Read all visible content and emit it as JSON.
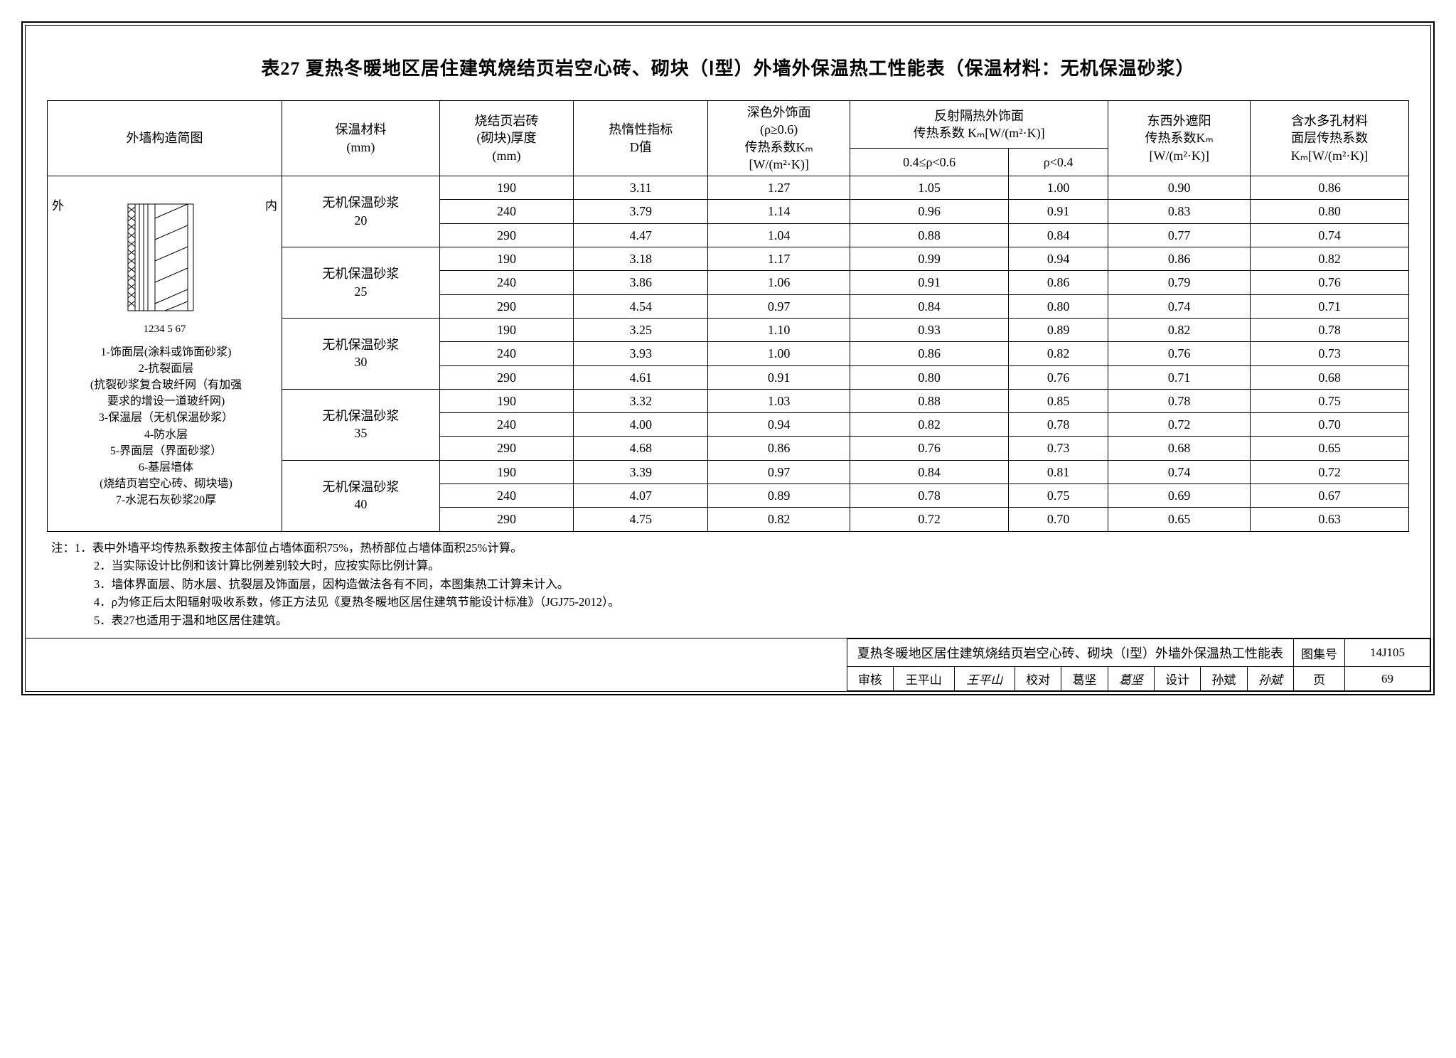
{
  "title": "表27 夏热冬暖地区居住建筑烧结页岩空心砖、砌块（Ⅰ型）外墙外保温热工性能表（保温材料：无机保温砂浆）",
  "headers": {
    "col1": "外墙构造简图",
    "col2_l1": "保温材料",
    "col2_l2": "(mm)",
    "col3_l1": "烧结页岩砖",
    "col3_l2": "(砌块)厚度",
    "col3_l3": "(mm)",
    "col4_l1": "热惰性指标",
    "col4_l2": "D值",
    "col5_l1": "深色外饰面",
    "col5_l2": "(ρ≥0.6)",
    "col5_l3": "传热系数Kₘ",
    "col5_l4": "[W/(m²·K)]",
    "col67_top_l1": "反射隔热外饰面",
    "col67_top_l2": "传热系数 Kₘ[W/(m²·K)]",
    "col6": "0.4≤ρ<0.6",
    "col7": "ρ<0.4",
    "col8_l1": "东西外遮阳",
    "col8_l2": "传热系数Kₘ",
    "col8_l3": "[W/(m²·K)]",
    "col9_l1": "含水多孔材料",
    "col9_l2": "面层传热系数",
    "col9_l3": "Kₘ[W/(m²·K)]"
  },
  "diagram": {
    "label_out": "外",
    "label_in": "内",
    "nums": "1234  5  67",
    "legend1": "1-饰面层(涂料或饰面砂浆)",
    "legend2": "2-抗裂面层",
    "legend2b": "(抗裂砂浆复合玻纤网（有加强",
    "legend2c": "要求的增设一道玻纤网)",
    "legend3": "3-保温层（无机保温砂浆）",
    "legend4": "4-防水层",
    "legend5": "5-界面层（界面砂浆）",
    "legend6": "6-基层墙体",
    "legend6b": "(烧结页岩空心砖、砌块墙)",
    "legend7": "7-水泥石灰砂浆20厚"
  },
  "groups": [
    {
      "label_l1": "无机保温砂浆",
      "label_l2": "20",
      "rows": [
        [
          "190",
          "3.11",
          "1.27",
          "1.05",
          "1.00",
          "0.90",
          "0.86"
        ],
        [
          "240",
          "3.79",
          "1.14",
          "0.96",
          "0.91",
          "0.83",
          "0.80"
        ],
        [
          "290",
          "4.47",
          "1.04",
          "0.88",
          "0.84",
          "0.77",
          "0.74"
        ]
      ]
    },
    {
      "label_l1": "无机保温砂浆",
      "label_l2": "25",
      "rows": [
        [
          "190",
          "3.18",
          "1.17",
          "0.99",
          "0.94",
          "0.86",
          "0.82"
        ],
        [
          "240",
          "3.86",
          "1.06",
          "0.91",
          "0.86",
          "0.79",
          "0.76"
        ],
        [
          "290",
          "4.54",
          "0.97",
          "0.84",
          "0.80",
          "0.74",
          "0.71"
        ]
      ]
    },
    {
      "label_l1": "无机保温砂浆",
      "label_l2": "30",
      "rows": [
        [
          "190",
          "3.25",
          "1.10",
          "0.93",
          "0.89",
          "0.82",
          "0.78"
        ],
        [
          "240",
          "3.93",
          "1.00",
          "0.86",
          "0.82",
          "0.76",
          "0.73"
        ],
        [
          "290",
          "4.61",
          "0.91",
          "0.80",
          "0.76",
          "0.71",
          "0.68"
        ]
      ]
    },
    {
      "label_l1": "无机保温砂浆",
      "label_l2": "35",
      "rows": [
        [
          "190",
          "3.32",
          "1.03",
          "0.88",
          "0.85",
          "0.78",
          "0.75"
        ],
        [
          "240",
          "4.00",
          "0.94",
          "0.82",
          "0.78",
          "0.72",
          "0.70"
        ],
        [
          "290",
          "4.68",
          "0.86",
          "0.76",
          "0.73",
          "0.68",
          "0.65"
        ]
      ]
    },
    {
      "label_l1": "无机保温砂浆",
      "label_l2": "40",
      "rows": [
        [
          "190",
          "3.39",
          "0.97",
          "0.84",
          "0.81",
          "0.74",
          "0.72"
        ],
        [
          "240",
          "4.07",
          "0.89",
          "0.78",
          "0.75",
          "0.69",
          "0.67"
        ],
        [
          "290",
          "4.75",
          "0.82",
          "0.72",
          "0.70",
          "0.65",
          "0.63"
        ]
      ]
    }
  ],
  "notes": {
    "lead": "注：",
    "n1": "1．表中外墙平均传热系数按主体部位占墙体面积75%，热桥部位占墙体面积25%计算。",
    "n2": "2．当实际设计比例和该计算比例差别较大时，应按实际比例计算。",
    "n3": "3．墙体界面层、防水层、抗裂层及饰面层，因构造做法各有不同，本图集热工计算未计入。",
    "n4": "4．ρ为修正后太阳辐射吸收系数，修正方法见《夏热冬暖地区居住建筑节能设计标准》（JGJ75-2012）。",
    "n5": "5．表27也适用于温和地区居住建筑。"
  },
  "footer": {
    "long_title": "夏热冬暖地区居住建筑烧结页岩空心砖、砌块（Ⅰ型）外墙外保温热工性能表",
    "set_label": "图集号",
    "set_val": "14J105",
    "f1": "审核",
    "f1v": "王平山",
    "f1s": "王平山",
    "f2": "校对",
    "f2v": "葛坚",
    "f2s": "葛坚",
    "f3": "设计",
    "f3v": "孙斌",
    "f3s": "孙斌",
    "page_label": "页",
    "page_val": "69"
  }
}
